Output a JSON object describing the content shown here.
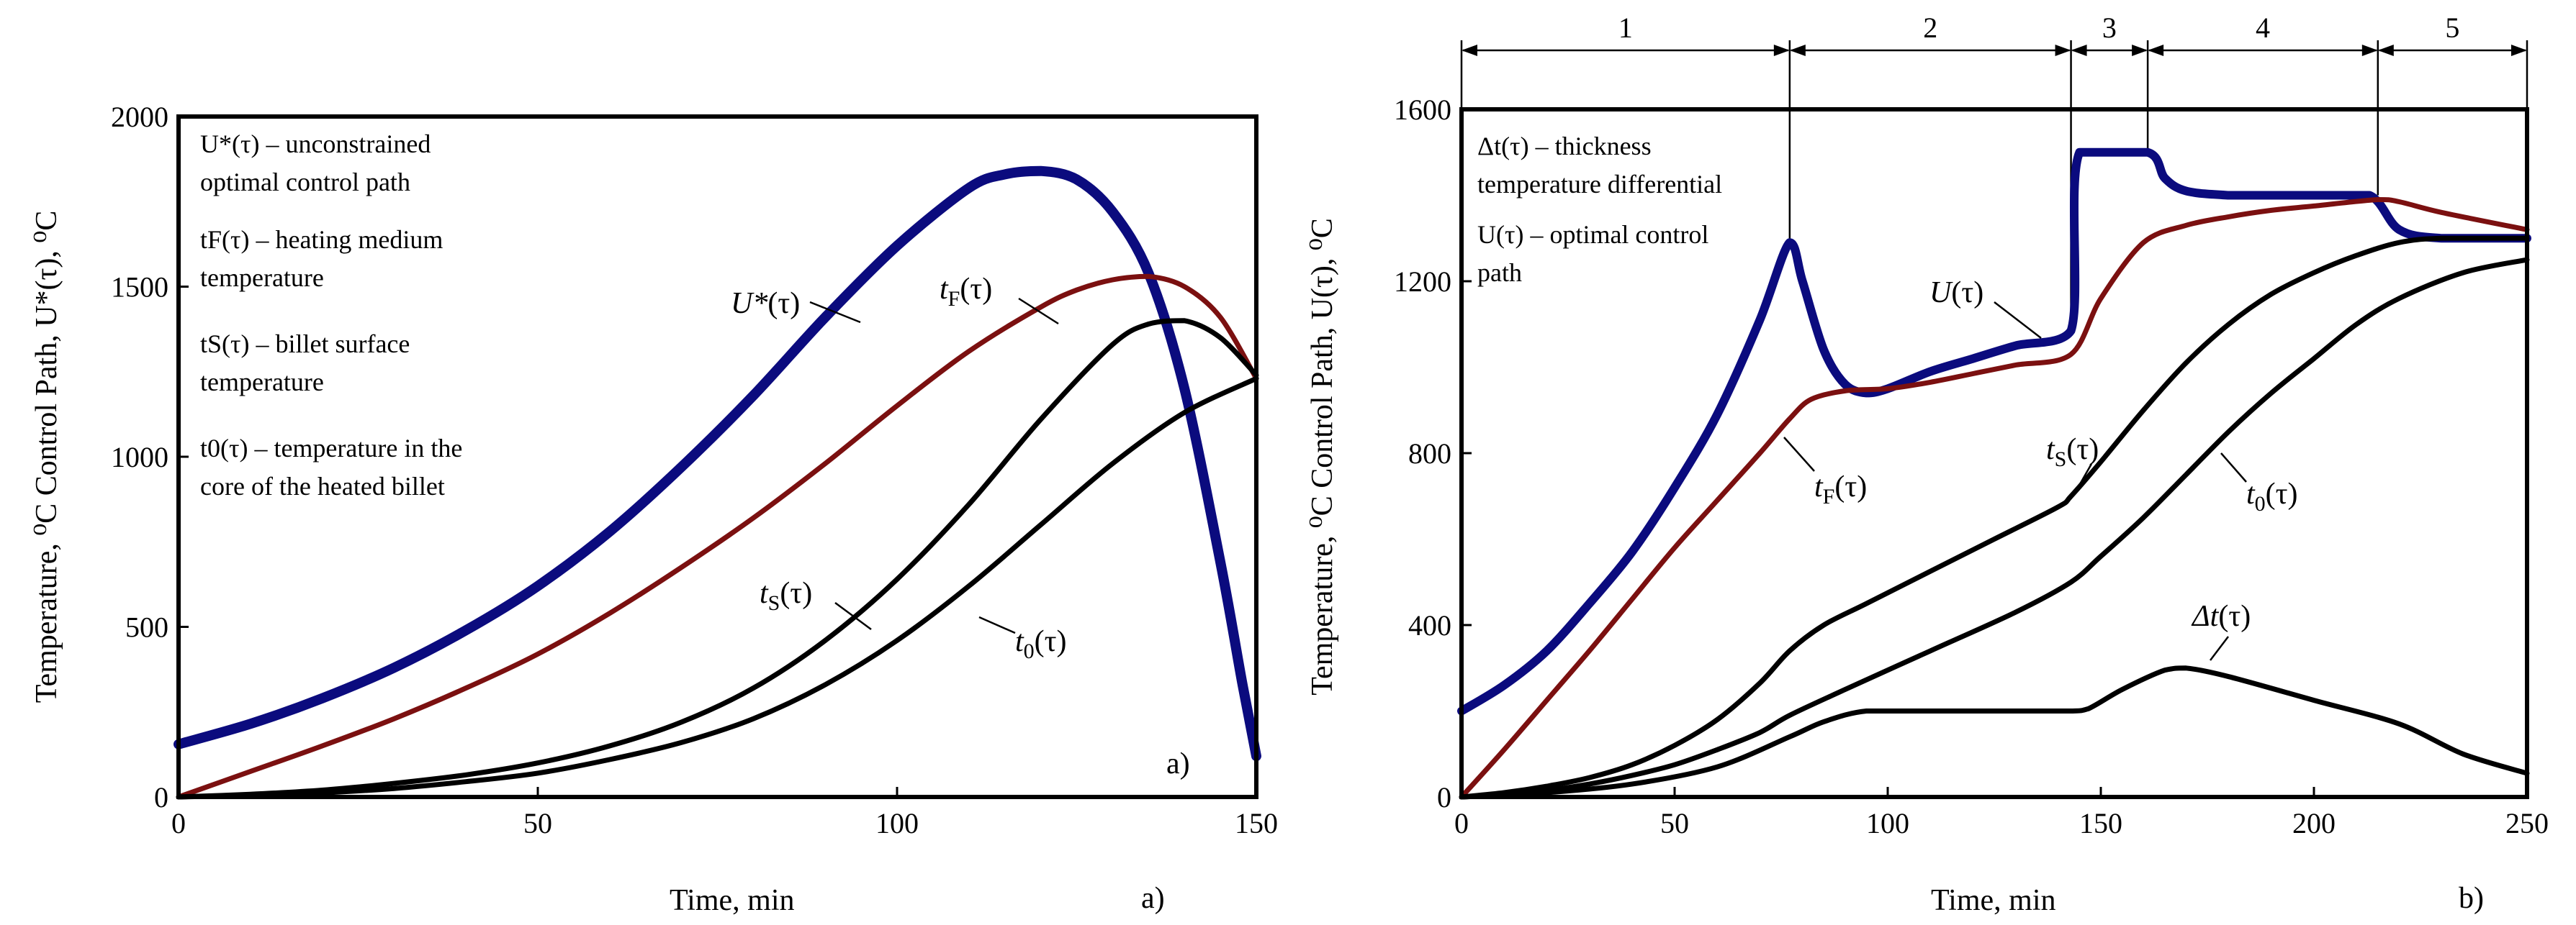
{
  "colors": {
    "navy": "#0b0b7e",
    "red": "#7b1010",
    "black": "#000000"
  },
  "chart_data": [
    {
      "type": "line",
      "panel_label": "a)",
      "xlabel": "Time, min",
      "ylabel": "Temperature, ⁰C  Control Path, U*(τ),  ⁰C",
      "xlim": [
        0,
        150
      ],
      "ylim": [
        0,
        2000
      ],
      "xticks": [
        0,
        50,
        100,
        150
      ],
      "yticks": [
        0,
        500,
        1000,
        1500,
        2000
      ],
      "legend": [
        "U*(τ) – unconstrained",
        "optimal control path",
        "tF(τ) – heating medium",
        "temperature",
        "tS(τ) – billet surface",
        "temperature",
        "t0(τ) – temperature in the",
        "core of the heated billet"
      ],
      "series": [
        {
          "name": "U*(τ)",
          "color": "#0b0b7e",
          "width": 14,
          "x": [
            0,
            10,
            20,
            30,
            40,
            50,
            60,
            70,
            80,
            90,
            100,
            110,
            115,
            120,
            125,
            130,
            135,
            140,
            145,
            148,
            150
          ],
          "y": [
            155,
            215,
            290,
            380,
            490,
            620,
            780,
            970,
            1180,
            1410,
            1620,
            1790,
            1830,
            1840,
            1815,
            1720,
            1540,
            1200,
            690,
            340,
            120
          ]
        },
        {
          "name": "tF(τ)",
          "color": "#7b1010",
          "width": 7,
          "x": [
            0,
            10,
            20,
            30,
            40,
            50,
            60,
            70,
            80,
            90,
            100,
            110,
            120,
            125,
            130,
            135,
            140,
            145,
            150
          ],
          "y": [
            0,
            75,
            150,
            230,
            320,
            420,
            540,
            675,
            820,
            980,
            1150,
            1310,
            1440,
            1490,
            1520,
            1530,
            1500,
            1410,
            1230
          ]
        },
        {
          "name": "tS(τ)",
          "color": "#000000",
          "width": 7,
          "x": [
            0,
            10,
            20,
            30,
            40,
            50,
            60,
            70,
            80,
            90,
            100,
            110,
            120,
            130,
            135,
            140,
            145,
            150
          ],
          "y": [
            0,
            8,
            20,
            40,
            65,
            100,
            150,
            220,
            320,
            460,
            640,
            860,
            1110,
            1330,
            1390,
            1400,
            1350,
            1240
          ]
        },
        {
          "name": "t0(τ)",
          "color": "#000000",
          "width": 7,
          "x": [
            0,
            10,
            20,
            30,
            40,
            50,
            60,
            70,
            80,
            90,
            100,
            110,
            120,
            130,
            140,
            150
          ],
          "y": [
            0,
            5,
            12,
            25,
            45,
            70,
            110,
            160,
            230,
            330,
            460,
            620,
            800,
            980,
            1130,
            1230
          ]
        }
      ],
      "curve_labels": [
        {
          "text": "U*(τ)",
          "main": "U*",
          "sub": "",
          "arg": "(τ)"
        },
        {
          "text": "tF(τ)",
          "main": "t",
          "sub": "F",
          "arg": "(τ)"
        },
        {
          "text": "tS(τ)",
          "main": "t",
          "sub": "S",
          "arg": "(τ)"
        },
        {
          "text": "t0(τ)",
          "main": "t",
          "sub": "0",
          "arg": "(τ)"
        }
      ]
    },
    {
      "type": "line",
      "panel_label": "b)",
      "xlabel": "Time, min",
      "ylabel": "Temperature, ⁰C  Control Path, U(τ),  ⁰C",
      "xlim": [
        0,
        250
      ],
      "ylim": [
        0,
        1600
      ],
      "xticks": [
        0,
        50,
        100,
        150,
        200,
        250
      ],
      "yticks": [
        0,
        400,
        800,
        1200,
        1600
      ],
      "phases": {
        "labels": [
          "1",
          "2",
          "3",
          "4",
          "5"
        ],
        "boundaries": [
          0,
          77,
          143,
          161,
          215,
          250
        ]
      },
      "legend": [
        "Δt(τ) – thickness",
        "temperature differential",
        "U(τ) – optimal control",
        "path"
      ],
      "series": [
        {
          "name": "U(τ)",
          "color": "#0b0b7e",
          "width": 12,
          "x": [
            0,
            10,
            20,
            30,
            40,
            50,
            60,
            70,
            77,
            80,
            85,
            90,
            95,
            100,
            110,
            120,
            130,
            143,
            145,
            161,
            165,
            170,
            180,
            190,
            200,
            213,
            220,
            230,
            250
          ],
          "y": [
            200,
            260,
            340,
            450,
            570,
            720,
            890,
            1110,
            1290,
            1200,
            1040,
            960,
            940,
            950,
            990,
            1020,
            1050,
            1085,
            1500,
            1500,
            1440,
            1410,
            1400,
            1400,
            1400,
            1400,
            1320,
            1300,
            1300
          ]
        },
        {
          "name": "tF(τ)",
          "color": "#7b1010",
          "width": 7,
          "x": [
            0,
            10,
            20,
            30,
            40,
            50,
            60,
            70,
            77,
            82,
            90,
            100,
            110,
            120,
            130,
            143,
            150,
            160,
            170,
            180,
            190,
            200,
            215,
            220,
            230,
            250
          ],
          "y": [
            0,
            110,
            225,
            340,
            460,
            580,
            690,
            800,
            880,
            925,
            945,
            950,
            965,
            985,
            1005,
            1030,
            1160,
            1290,
            1330,
            1350,
            1365,
            1375,
            1390,
            1385,
            1360,
            1320
          ]
        },
        {
          "name": "tS(τ)",
          "color": "#000000",
          "width": 7,
          "x": [
            0,
            10,
            20,
            30,
            40,
            50,
            60,
            70,
            77,
            85,
            95,
            110,
            125,
            140,
            143,
            150,
            160,
            170,
            180,
            190,
            200,
            210,
            220,
            230,
            250
          ],
          "y": [
            0,
            10,
            25,
            45,
            75,
            120,
            180,
            265,
            340,
            400,
            450,
            525,
            600,
            675,
            700,
            780,
            900,
            1010,
            1100,
            1170,
            1220,
            1260,
            1290,
            1300,
            1300
          ]
        },
        {
          "name": "t0(τ)",
          "color": "#000000",
          "width": 7,
          "x": [
            0,
            10,
            20,
            30,
            40,
            50,
            60,
            70,
            77,
            90,
            110,
            130,
            143,
            150,
            160,
            170,
            180,
            190,
            200,
            210,
            220,
            235,
            250
          ],
          "y": [
            0,
            5,
            15,
            30,
            50,
            75,
            110,
            150,
            190,
            250,
            340,
            430,
            500,
            560,
            650,
            750,
            850,
            940,
            1020,
            1100,
            1160,
            1220,
            1250
          ]
        },
        {
          "name": "Δt(τ)",
          "color": "#000000",
          "width": 7,
          "x": [
            0,
            20,
            40,
            60,
            77,
            85,
            95,
            110,
            130,
            143,
            147,
            155,
            165,
            170,
            180,
            200,
            220,
            235,
            250
          ],
          "y": [
            0,
            10,
            30,
            70,
            140,
            175,
            200,
            200,
            200,
            200,
            205,
            250,
            295,
            300,
            280,
            225,
            170,
            100,
            55
          ]
        }
      ],
      "curve_labels": [
        {
          "text": "U(τ)",
          "main": "U",
          "sub": "",
          "arg": "(τ)"
        },
        {
          "text": "tF(τ)",
          "main": "t",
          "sub": "F",
          "arg": "(τ)"
        },
        {
          "text": "tS(τ)",
          "main": "t",
          "sub": "S",
          "arg": "(τ)"
        },
        {
          "text": "t0(τ)",
          "main": "t",
          "sub": "0",
          "arg": "(τ)"
        },
        {
          "text": "Δt(τ)",
          "main": "Δt",
          "sub": "",
          "arg": "(τ)"
        }
      ]
    }
  ]
}
